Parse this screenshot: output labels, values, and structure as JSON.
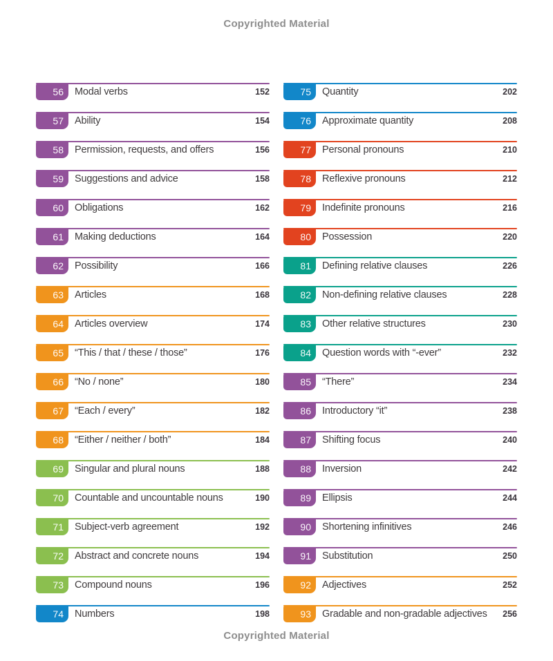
{
  "page": {
    "top_watermark": "Copyrighted Material",
    "bottom_watermark": "Copyrighted Material"
  },
  "colors": {
    "purple": "#92529a",
    "orange": "#f0941d",
    "green": "#8bbf4f",
    "blue": "#1287c9",
    "red": "#e2431f",
    "teal": "#0aa18b",
    "title_text": "#3e3a3c",
    "page_number_text": "#38333a",
    "watermark_text": "#8d8d8d"
  },
  "toc": {
    "left_column": [
      {
        "number": "56",
        "title": "Modal verbs",
        "page": "152",
        "color": "purple"
      },
      {
        "number": "57",
        "title": "Ability",
        "page": "154",
        "color": "purple"
      },
      {
        "number": "58",
        "title": "Permission, requests, and offers",
        "page": "156",
        "color": "purple"
      },
      {
        "number": "59",
        "title": "Suggestions and advice",
        "page": "158",
        "color": "purple"
      },
      {
        "number": "60",
        "title": "Obligations",
        "page": "162",
        "color": "purple"
      },
      {
        "number": "61",
        "title": "Making deductions",
        "page": "164",
        "color": "purple"
      },
      {
        "number": "62",
        "title": "Possibility",
        "page": "166",
        "color": "purple"
      },
      {
        "number": "63",
        "title": "Articles",
        "page": "168",
        "color": "orange"
      },
      {
        "number": "64",
        "title": "Articles overview",
        "page": "174",
        "color": "orange"
      },
      {
        "number": "65",
        "title": "“This / that / these / those”",
        "page": "176",
        "color": "orange"
      },
      {
        "number": "66",
        "title": "“No / none”",
        "page": "180",
        "color": "orange"
      },
      {
        "number": "67",
        "title": "“Each / every”",
        "page": "182",
        "color": "orange"
      },
      {
        "number": "68",
        "title": "“Either / neither / both”",
        "page": "184",
        "color": "orange"
      },
      {
        "number": "69",
        "title": "Singular and plural nouns",
        "page": "188",
        "color": "green"
      },
      {
        "number": "70",
        "title": "Countable and uncountable nouns",
        "page": "190",
        "color": "green"
      },
      {
        "number": "71",
        "title": "Subject-verb agreement",
        "page": "192",
        "color": "green"
      },
      {
        "number": "72",
        "title": "Abstract and concrete nouns",
        "page": "194",
        "color": "green"
      },
      {
        "number": "73",
        "title": "Compound nouns",
        "page": "196",
        "color": "green"
      },
      {
        "number": "74",
        "title": "Numbers",
        "page": "198",
        "color": "blue"
      }
    ],
    "right_column": [
      {
        "number": "75",
        "title": "Quantity",
        "page": "202",
        "color": "blue"
      },
      {
        "number": "76",
        "title": "Approximate quantity",
        "page": "208",
        "color": "blue"
      },
      {
        "number": "77",
        "title": "Personal pronouns",
        "page": "210",
        "color": "red"
      },
      {
        "number": "78",
        "title": "Reflexive pronouns",
        "page": "212",
        "color": "red"
      },
      {
        "number": "79",
        "title": "Indefinite pronouns",
        "page": "216",
        "color": "red"
      },
      {
        "number": "80",
        "title": "Possession",
        "page": "220",
        "color": "red"
      },
      {
        "number": "81",
        "title": "Defining relative clauses",
        "page": "226",
        "color": "teal"
      },
      {
        "number": "82",
        "title": "Non-defining relative clauses",
        "page": "228",
        "color": "teal"
      },
      {
        "number": "83",
        "title": "Other relative structures",
        "page": "230",
        "color": "teal"
      },
      {
        "number": "84",
        "title": "Question words with “-ever”",
        "page": "232",
        "color": "teal"
      },
      {
        "number": "85",
        "title": "“There”",
        "page": "234",
        "color": "purple"
      },
      {
        "number": "86",
        "title": "Introductory “it”",
        "page": "238",
        "color": "purple"
      },
      {
        "number": "87",
        "title": "Shifting focus",
        "page": "240",
        "color": "purple"
      },
      {
        "number": "88",
        "title": "Inversion",
        "page": "242",
        "color": "purple"
      },
      {
        "number": "89",
        "title": "Ellipsis",
        "page": "244",
        "color": "purple"
      },
      {
        "number": "90",
        "title": "Shortening infinitives",
        "page": "246",
        "color": "purple"
      },
      {
        "number": "91",
        "title": "Substitution",
        "page": "250",
        "color": "purple"
      },
      {
        "number": "92",
        "title": "Adjectives",
        "page": "252",
        "color": "orange"
      },
      {
        "number": "93",
        "title": "Gradable and non-gradable adjectives",
        "page": "256",
        "color": "orange"
      }
    ]
  }
}
